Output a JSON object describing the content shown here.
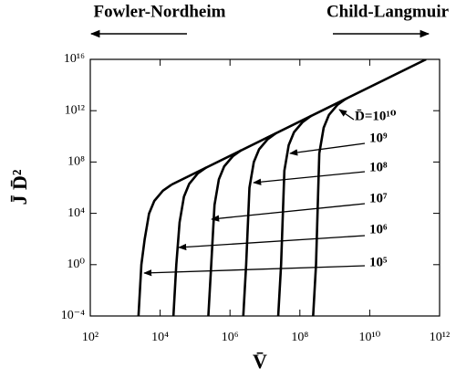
{
  "chart_data": {
    "type": "line",
    "header_labels": [
      "Fowler-Nordheim",
      "Child-Langmuir"
    ],
    "x_label": "V̄",
    "y_label": "J̄ D̄²",
    "xscale": "log",
    "yscale": "log",
    "xlim": [
      100.0,
      1000000000000.0
    ],
    "ylim": [
      0.0001,
      1e+16
    ],
    "xticks": [
      {
        "value": 100.0,
        "label": "10²"
      },
      {
        "value": 10000.0,
        "label": "10⁴"
      },
      {
        "value": 1000000.0,
        "label": "10⁶"
      },
      {
        "value": 100000000.0,
        "label": "10⁸"
      },
      {
        "value": 10000000000.0,
        "label": "10¹⁰"
      },
      {
        "value": 1000000000000.0,
        "label": "10¹²"
      }
    ],
    "yticks": [
      {
        "value": 0.0001,
        "label": "10⁻⁴"
      },
      {
        "value": 1,
        "label": "10⁰"
      },
      {
        "value": 10000.0,
        "label": "10⁴"
      },
      {
        "value": 100000000.0,
        "label": "10⁸"
      },
      {
        "value": 1000000000000.0,
        "label": "10¹²"
      },
      {
        "value": 1e+16,
        "label": "10¹⁶"
      }
    ],
    "annotations": [
      {
        "text": "D̄=10¹⁰"
      },
      {
        "text": "10⁹"
      },
      {
        "text": "10⁸"
      },
      {
        "text": "10⁷"
      },
      {
        "text": "10⁶"
      },
      {
        "text": "10⁵"
      }
    ],
    "series": [
      {
        "color": "#000000",
        "x": [
          2400.0,
          2900.0,
          3600.0,
          4800.0,
          6800.0,
          12000.0,
          21000.0
        ],
        "values": [
          0.0001,
          1,
          93,
          9300.0,
          93000.0,
          580000.0,
          1700000.0
        ]
      },
      {
        "color": "#000000",
        "x": [
          24000.0,
          29000.0,
          36000.0,
          48000.0,
          68000.0,
          120000.0,
          210000.0
        ],
        "values": [
          0.0001,
          1,
          2000.0,
          200000.0,
          2000000.0,
          13000000.0,
          38000000.0
        ]
      },
      {
        "color": "#000000",
        "x": [
          240000.0,
          290000.0,
          360000.0,
          480000.0,
          680000.0,
          1200000.0,
          2100000.0
        ],
        "values": [
          0.0001,
          1,
          45000.0,
          4500000.0,
          45000000.0,
          280000000.0,
          830000000.0
        ]
      },
      {
        "color": "#000000",
        "x": [
          2400000.0,
          2900000.0,
          3600000.0,
          4800000.0,
          6800000.0,
          12000000.0,
          21000000.0
        ],
        "values": [
          0.0001,
          1,
          980000.0,
          98000000.0,
          980000000.0,
          6000000000.0,
          18000000000.0
        ]
      },
      {
        "color": "#000000",
        "x": [
          24000000.0,
          29000000.0,
          36000000.0,
          48000000.0,
          68000000.0,
          120000000.0,
          210000000.0
        ],
        "values": [
          0.0001,
          1,
          21000000.0,
          2100000000.0,
          21000000000.0,
          130000000000.0,
          400000000000.0
        ]
      },
      {
        "color": "#000000",
        "x": [
          240000000.0,
          290000000.0,
          360000000.0,
          480000000.0,
          680000000.0,
          1200000000.0,
          2100000000.0
        ],
        "values": [
          0.0001,
          1,
          470000000.0,
          47000000000.0,
          470000000000.0,
          2900000000000.0,
          8700000000000.0
        ]
      },
      {
        "color": "#000000",
        "x": [
          21000.0,
          410000000000.0
        ],
        "values": [
          1700000.0,
          1e+16
        ]
      }
    ]
  }
}
